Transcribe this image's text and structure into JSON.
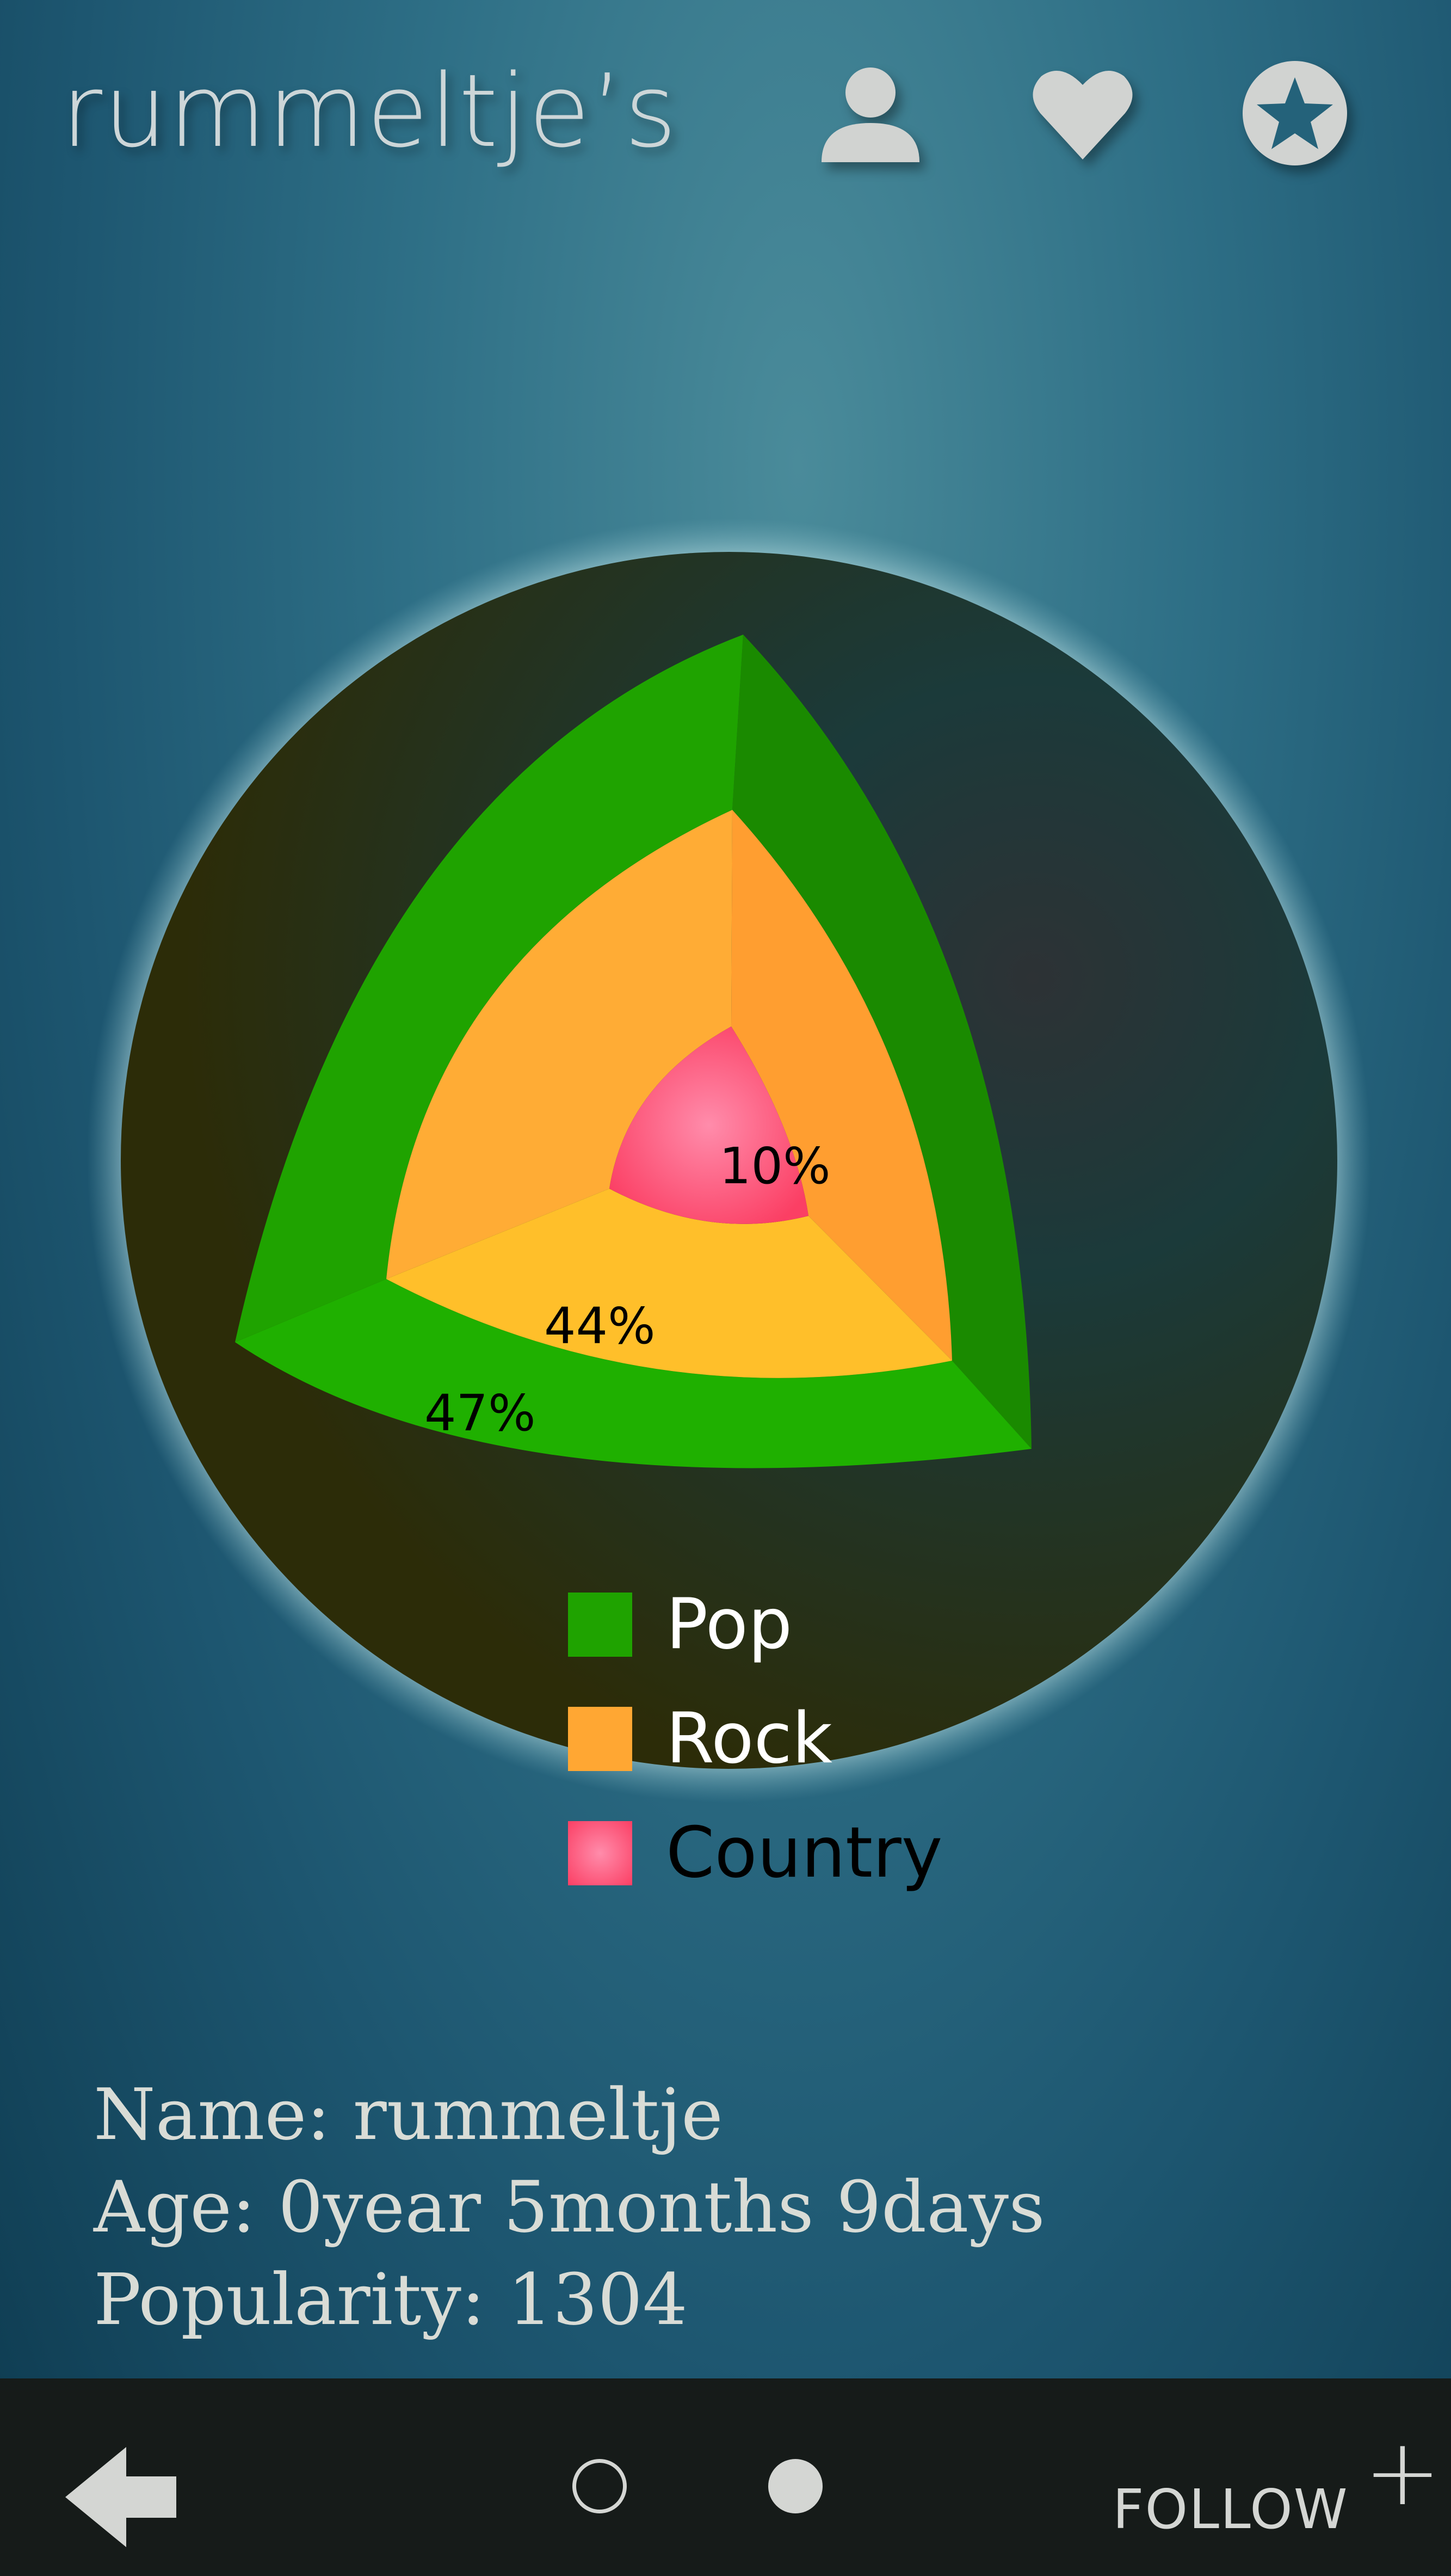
{
  "header": {
    "title": "rummeltje’s",
    "icons": [
      "user-icon",
      "heart-icon",
      "star-icon"
    ]
  },
  "chart_data": {
    "type": "pie",
    "style": "3d-nested-sectors",
    "series": [
      {
        "name": "Pop",
        "value_label": "47%",
        "value": 47,
        "color": "#1fa300"
      },
      {
        "name": "Rock",
        "value_label": "44%",
        "value": 44,
        "color": "#ffa733"
      },
      {
        "name": "Country",
        "value_label": "10%",
        "value": 10,
        "color": "#ff6a8a"
      }
    ],
    "legend_position": "bottom",
    "background_color": "#2c2c08"
  },
  "profile": {
    "name_line": "Name: rummeltje",
    "age_line": "Age: 0year 5months 9days",
    "popularity_line": "Popularity: 1304"
  },
  "footer": {
    "back_icon": "arrow-left-icon",
    "page_indicators": [
      "inactive",
      "active"
    ],
    "follow_label": "FOLLOW",
    "follow_icon": "plus-icon"
  }
}
